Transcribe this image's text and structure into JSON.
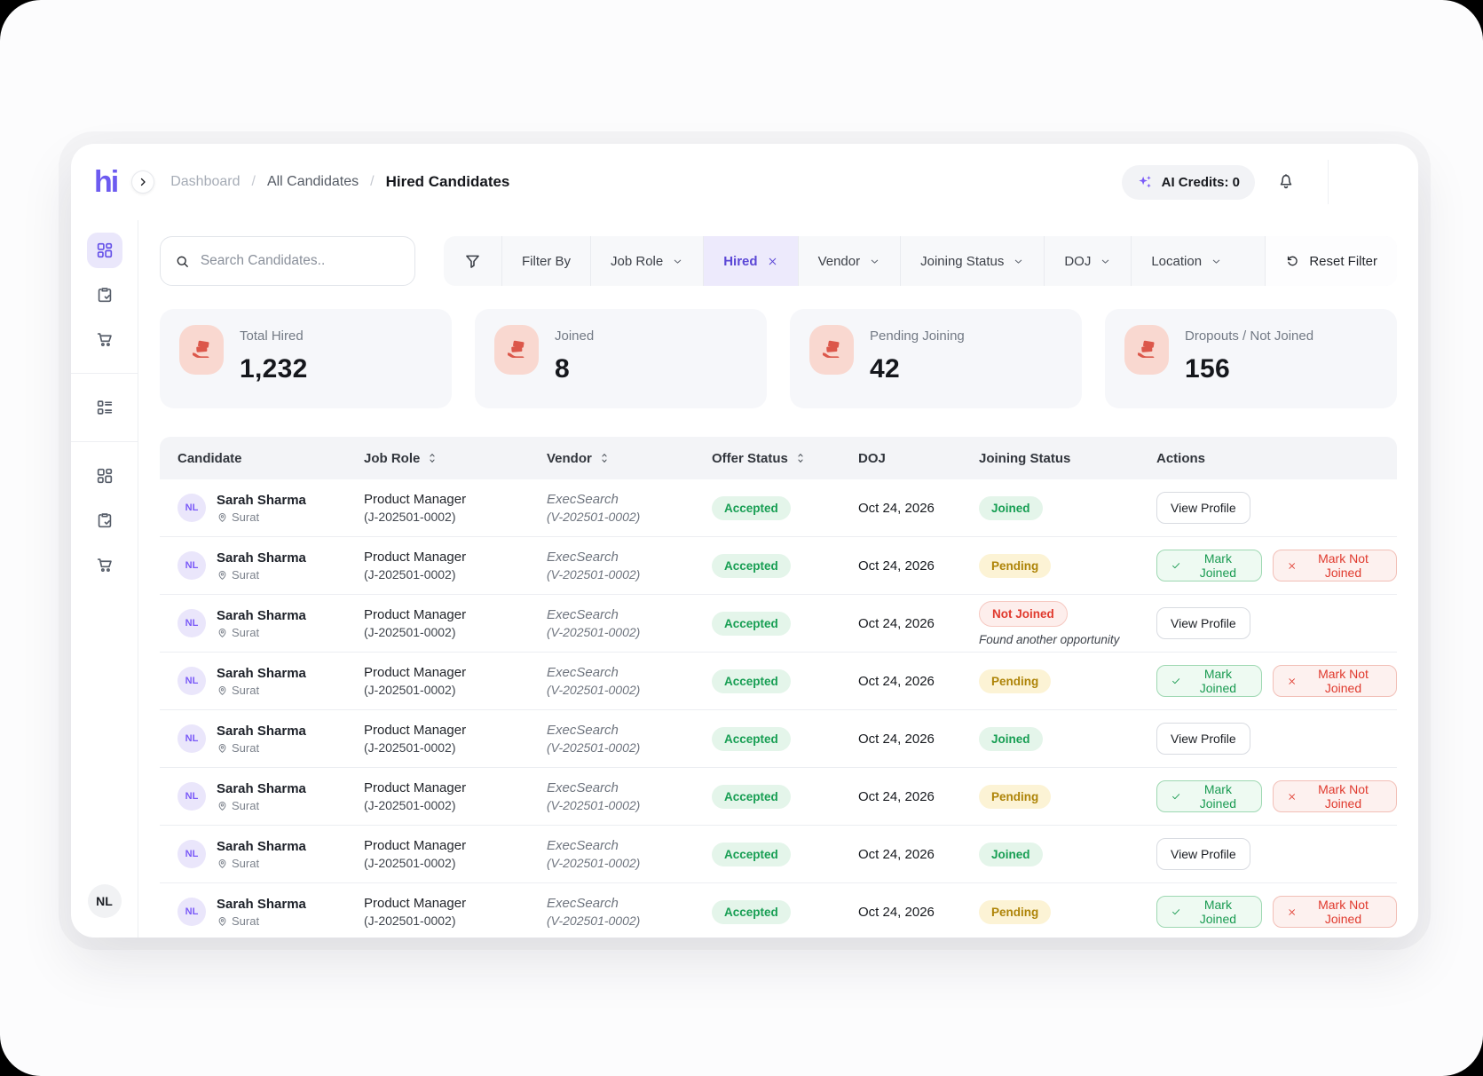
{
  "brand": {
    "logo_text": "hi"
  },
  "header": {
    "breadcrumb": [
      {
        "label": "Dashboard",
        "state": "muted"
      },
      {
        "label": "All Candidates",
        "state": "mid"
      },
      {
        "label": "Hired Candidates",
        "state": "active"
      }
    ],
    "ai_credits_label": "AI Credits: 0"
  },
  "sidebar": {
    "items": [
      {
        "icon": "grid-icon",
        "active": true
      },
      {
        "icon": "clipboard-check-icon",
        "active": false
      },
      {
        "icon": "cart-icon",
        "active": false
      },
      {
        "divider": true
      },
      {
        "icon": "list-grid-icon",
        "active": false
      },
      {
        "divider": true
      },
      {
        "icon": "grid-icon",
        "active": false
      },
      {
        "icon": "clipboard-check-icon",
        "active": false
      },
      {
        "icon": "cart-icon",
        "active": false
      }
    ],
    "user_initials": "NL"
  },
  "search": {
    "placeholder": "Search Candidates.."
  },
  "filter_bar": {
    "items": [
      {
        "type": "funnel",
        "icon": "funnel-icon"
      },
      {
        "type": "static",
        "label": "Filter By"
      },
      {
        "type": "dropdown",
        "label": "Job Role"
      },
      {
        "type": "chip",
        "label": "Hired"
      },
      {
        "type": "dropdown",
        "label": "Vendor"
      },
      {
        "type": "dropdown",
        "label": "Joining Status"
      },
      {
        "type": "dropdown",
        "label": "DOJ"
      },
      {
        "type": "dropdown",
        "label": "Location"
      },
      {
        "type": "reset",
        "label": "Reset Filter",
        "icon": "reset-icon"
      }
    ]
  },
  "stats": [
    {
      "label": "Total Hired",
      "value": "1,232",
      "icon": "money-hand-icon"
    },
    {
      "label": "Joined",
      "value": "8",
      "icon": "money-hand-icon"
    },
    {
      "label": "Pending Joining",
      "value": "42",
      "icon": "money-hand-icon"
    },
    {
      "label": "Dropouts / Not Joined",
      "value": "156",
      "icon": "money-hand-icon"
    }
  ],
  "table": {
    "columns": [
      {
        "label": "Candidate",
        "sortable": false
      },
      {
        "label": "Job Role",
        "sortable": true
      },
      {
        "label": "Vendor",
        "sortable": true
      },
      {
        "label": "Offer Status",
        "sortable": true
      },
      {
        "label": "DOJ",
        "sortable": false
      },
      {
        "label": "Joining Status",
        "sortable": false
      },
      {
        "label": "Actions",
        "sortable": false
      }
    ],
    "action_labels": {
      "view_profile": "View Profile",
      "mark_joined": "Mark Joined",
      "mark_not_joined": "Mark Not Joined"
    },
    "rows": [
      {
        "avatar": "NL",
        "name": "Sarah Sharma",
        "location": "Surat",
        "job_role": "Product Manager",
        "job_code": "(J-202501-0002)",
        "vendor": "ExecSearch",
        "vendor_code": "(V-202501-0002)",
        "offer_status": "Accepted",
        "doj": "Oct 24, 2026",
        "joining_status": "Joined",
        "note": "",
        "actions": [
          "view_profile"
        ]
      },
      {
        "avatar": "NL",
        "name": "Sarah Sharma",
        "location": "Surat",
        "job_role": "Product Manager",
        "job_code": "(J-202501-0002)",
        "vendor": "ExecSearch",
        "vendor_code": "(V-202501-0002)",
        "offer_status": "Accepted",
        "doj": "Oct 24, 2026",
        "joining_status": "Pending",
        "note": "",
        "actions": [
          "mark_joined",
          "mark_not_joined"
        ]
      },
      {
        "avatar": "NL",
        "name": "Sarah Sharma",
        "location": "Surat",
        "job_role": "Product Manager",
        "job_code": "(J-202501-0002)",
        "vendor": "ExecSearch",
        "vendor_code": "(V-202501-0002)",
        "offer_status": "Accepted",
        "doj": "Oct 24, 2026",
        "joining_status": "Not Joined",
        "note": "Found another opportunity",
        "actions": [
          "view_profile"
        ]
      },
      {
        "avatar": "NL",
        "name": "Sarah Sharma",
        "location": "Surat",
        "job_role": "Product Manager",
        "job_code": "(J-202501-0002)",
        "vendor": "ExecSearch",
        "vendor_code": "(V-202501-0002)",
        "offer_status": "Accepted",
        "doj": "Oct 24, 2026",
        "joining_status": "Pending",
        "note": "",
        "actions": [
          "mark_joined",
          "mark_not_joined"
        ]
      },
      {
        "avatar": "NL",
        "name": "Sarah Sharma",
        "location": "Surat",
        "job_role": "Product Manager",
        "job_code": "(J-202501-0002)",
        "vendor": "ExecSearch",
        "vendor_code": "(V-202501-0002)",
        "offer_status": "Accepted",
        "doj": "Oct 24, 2026",
        "joining_status": "Joined",
        "note": "",
        "actions": [
          "view_profile"
        ]
      },
      {
        "avatar": "NL",
        "name": "Sarah Sharma",
        "location": "Surat",
        "job_role": "Product Manager",
        "job_code": "(J-202501-0002)",
        "vendor": "ExecSearch",
        "vendor_code": "(V-202501-0002)",
        "offer_status": "Accepted",
        "doj": "Oct 24, 2026",
        "joining_status": "Pending",
        "note": "",
        "actions": [
          "mark_joined",
          "mark_not_joined"
        ]
      },
      {
        "avatar": "NL",
        "name": "Sarah Sharma",
        "location": "Surat",
        "job_role": "Product Manager",
        "job_code": "(J-202501-0002)",
        "vendor": "ExecSearch",
        "vendor_code": "(V-202501-0002)",
        "offer_status": "Accepted",
        "doj": "Oct 24, 2026",
        "joining_status": "Joined",
        "note": "",
        "actions": [
          "view_profile"
        ]
      },
      {
        "avatar": "NL",
        "name": "Sarah Sharma",
        "location": "Surat",
        "job_role": "Product Manager",
        "job_code": "(J-202501-0002)",
        "vendor": "ExecSearch",
        "vendor_code": "(V-202501-0002)",
        "offer_status": "Accepted",
        "doj": "Oct 24, 2026",
        "joining_status": "Pending",
        "note": "",
        "actions": [
          "mark_joined",
          "mark_not_joined"
        ]
      }
    ]
  },
  "colors": {
    "accent_purple": "#6d5bf0",
    "chip_purple_bg": "#edeafc",
    "stat_icon_bg": "#f9d8d0",
    "stat_icon_fg": "#dc574a",
    "status_green": "#179e53",
    "status_yellow": "#ae8408",
    "status_red": "#e03a2e"
  }
}
